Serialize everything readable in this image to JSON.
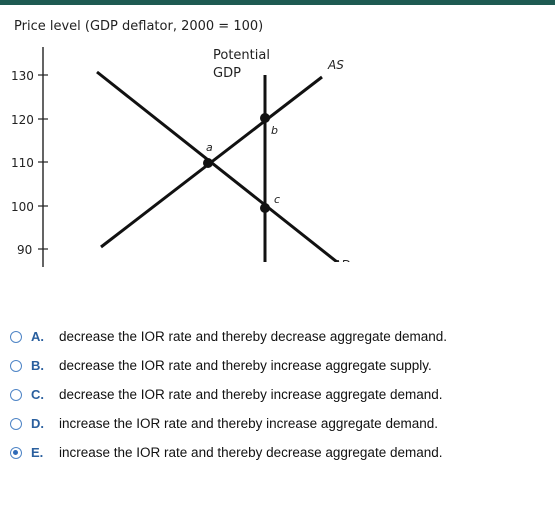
{
  "chart": {
    "title": "Price level (GDP deflator, 2000 = 100)",
    "y_ticks": [
      "130",
      "120",
      "110",
      "100",
      "90"
    ],
    "potential_label_1": "Potential",
    "potential_label_2": "GDP",
    "as_label": "AS",
    "ad_label": "AD",
    "point_a": "a",
    "point_b": "b",
    "point_c": "c"
  },
  "chart_data": {
    "type": "line",
    "title": "Price level (GDP deflator, 2000 = 100)",
    "ylabel": "",
    "xlabel": "",
    "yticks": [
      130,
      120,
      110,
      100,
      90
    ],
    "series": [
      {
        "name": "AS"
      },
      {
        "name": "AD"
      },
      {
        "name": "Potential GDP"
      }
    ],
    "points": [
      {
        "label": "a",
        "price_level": 110
      },
      {
        "label": "b",
        "price_level": 120
      },
      {
        "label": "c",
        "price_level": 100
      }
    ]
  },
  "options": [
    {
      "letter": "A.",
      "text": "decrease the IOR rate and thereby decrease aggregate demand.",
      "selected": false
    },
    {
      "letter": "B.",
      "text": "decrease the IOR rate and thereby increase aggregate supply.",
      "selected": false
    },
    {
      "letter": "C.",
      "text": "decrease the IOR rate and thereby increase aggregate demand.",
      "selected": false
    },
    {
      "letter": "D.",
      "text": "increase the IOR rate and thereby increase aggregate demand.",
      "selected": false
    },
    {
      "letter": "E.",
      "text": "increase the IOR rate and thereby decrease aggregate demand.",
      "selected": true
    }
  ],
  "colors": {
    "accent": "#2a5f9e",
    "radio": "#4f85c6",
    "top_bar": "#1e5a52"
  }
}
